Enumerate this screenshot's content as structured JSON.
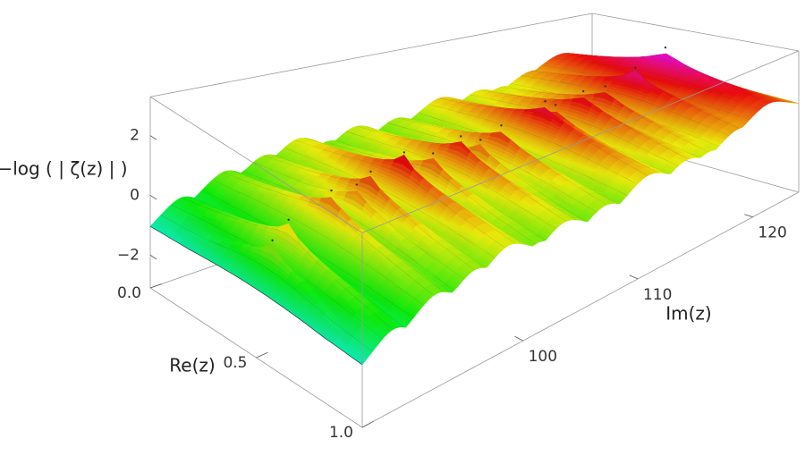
{
  "chart_data": {
    "type": "surface",
    "zlabel": "−log ( | ζ(z) | )",
    "xlabel": "Re(z)",
    "ylabel": "Im(z)",
    "xlim": [
      0,
      1
    ],
    "xticks": [
      {
        "value": 0,
        "label": "0.0"
      },
      0.5,
      {
        "value": 1,
        "label": "1.0"
      }
    ],
    "ylim": [
      86,
      124
    ],
    "yticks": [
      100,
      110,
      120
    ],
    "zlim": [
      -3.1,
      3.3
    ],
    "zticks": [
      {
        "value": -2,
        "label": "−2"
      },
      0,
      2
    ],
    "x": [
      87.4,
      88.8,
      92.5,
      94.7,
      95.9,
      98.8,
      101.3,
      103.7,
      105.4,
      107.2,
      111.0,
      111.9,
      114.3,
      116.2,
      118.8,
      121.4
    ],
    "values": [
      0.6,
      1.1,
      1.6,
      1.5,
      1.8,
      2.1,
      1.7,
      2.0,
      1.6,
      1.9,
      2.3,
      2.0,
      2.2,
      2.1,
      2.5,
      3.0
    ]
  }
}
